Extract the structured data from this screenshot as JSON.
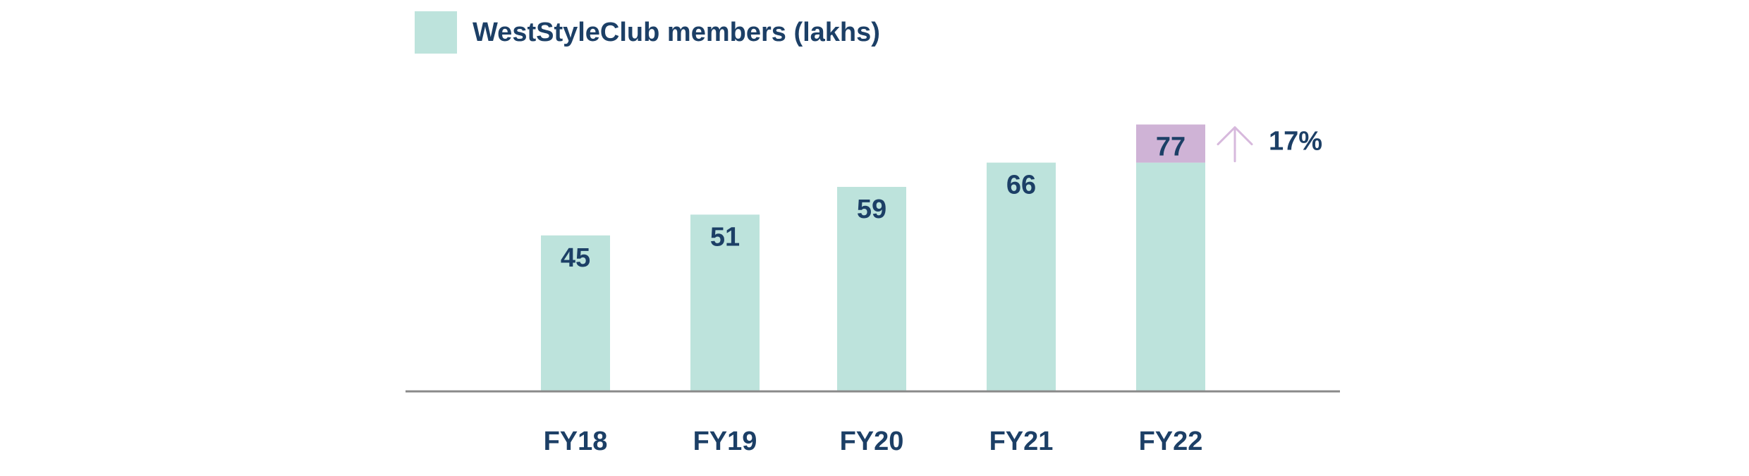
{
  "chart_data": {
    "type": "bar",
    "legend": {
      "label": "WestStyleClub members (lakhs)",
      "color": "#bde3dc"
    },
    "categories": [
      "FY18",
      "FY19",
      "FY20",
      "FY21",
      "FY22"
    ],
    "series": [
      {
        "name": "WestStyleClub members (lakhs)",
        "values": [
          45,
          51,
          59,
          66,
          77
        ],
        "data_labels": [
          "45",
          "51",
          "59",
          "66",
          "77"
        ]
      }
    ],
    "highlight": {
      "category": "FY22",
      "base_value": 66,
      "increment_color": "#cfb3d6",
      "growth_label": "17%",
      "growth_icon": "arrow-up-icon"
    },
    "ylim": [
      0,
      80
    ],
    "grid": false,
    "legend_position": "top-left",
    "colors": {
      "bar": "#bde3dc",
      "increment": "#cfb3d6",
      "arrow": "#d7b9dd",
      "text": "#1c3f66",
      "axis": "#8a8a8a"
    }
  }
}
